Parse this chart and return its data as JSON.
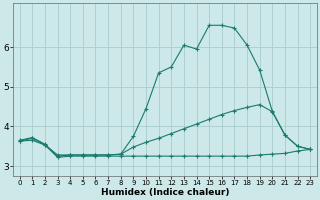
{
  "xlabel": "Humidex (Indice chaleur)",
  "bg_color": "#cce8e8",
  "grid_color": "#aacccc",
  "line_color": "#1a7a6e",
  "xlim": [
    -0.5,
    23.5
  ],
  "ylim": [
    2.75,
    7.1
  ],
  "xticks": [
    0,
    1,
    2,
    3,
    4,
    5,
    6,
    7,
    8,
    9,
    10,
    11,
    12,
    13,
    14,
    15,
    16,
    17,
    18,
    19,
    20,
    21,
    22,
    23
  ],
  "yticks": [
    3,
    4,
    5,
    6
  ],
  "line1_x": [
    0,
    1,
    2,
    3,
    4,
    5,
    6,
    7,
    8,
    9,
    10,
    11,
    12,
    13,
    14,
    15,
    16,
    17,
    18,
    19,
    20,
    21,
    22,
    23
  ],
  "line1_y": [
    3.65,
    3.72,
    3.55,
    3.25,
    3.28,
    3.28,
    3.28,
    3.28,
    3.3,
    3.75,
    4.45,
    5.35,
    5.5,
    6.05,
    5.95,
    6.55,
    6.55,
    6.48,
    6.05,
    5.42,
    4.38,
    3.78,
    3.5,
    3.42
  ],
  "line2_x": [
    0,
    1,
    2,
    3,
    4,
    5,
    6,
    7,
    8,
    9,
    10,
    11,
    12,
    13,
    14,
    15,
    16,
    17,
    18,
    19,
    20,
    21,
    22,
    23
  ],
  "line2_y": [
    3.63,
    3.7,
    3.53,
    3.28,
    3.28,
    3.28,
    3.28,
    3.28,
    3.3,
    3.48,
    3.6,
    3.7,
    3.82,
    3.94,
    4.06,
    4.18,
    4.3,
    4.4,
    4.48,
    4.55,
    4.37,
    3.78,
    3.5,
    3.42
  ],
  "line3_x": [
    0,
    1,
    2,
    3,
    4,
    5,
    6,
    7,
    8,
    9,
    10,
    11,
    12,
    13,
    14,
    15,
    16,
    17,
    18,
    19,
    20,
    21,
    22,
    23
  ],
  "line3_y": [
    3.63,
    3.65,
    3.53,
    3.22,
    3.25,
    3.25,
    3.25,
    3.25,
    3.25,
    3.25,
    3.25,
    3.25,
    3.25,
    3.25,
    3.25,
    3.25,
    3.25,
    3.25,
    3.25,
    3.28,
    3.3,
    3.32,
    3.38,
    3.42
  ],
  "marker_x1": [
    0,
    1,
    2,
    3,
    4,
    5,
    6,
    7,
    8,
    9,
    10,
    11,
    12,
    13,
    14,
    15,
    16,
    17,
    18,
    19,
    20,
    21,
    22,
    23
  ],
  "marker_x2": [
    0,
    1,
    2,
    9,
    10,
    11,
    12,
    13,
    14,
    15,
    16,
    17,
    18,
    19,
    20,
    21,
    22,
    23
  ],
  "marker_x3": [
    0,
    1,
    2,
    3,
    4,
    5,
    6,
    7,
    8,
    9,
    19,
    20,
    21,
    22,
    23
  ]
}
